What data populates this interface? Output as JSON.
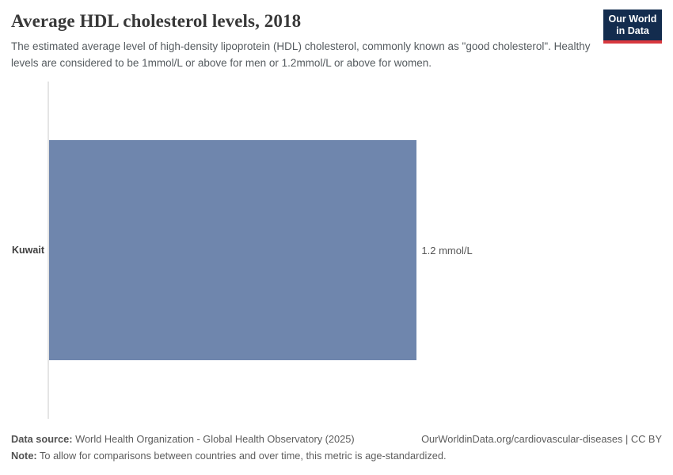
{
  "header": {
    "title": "Average HDL cholesterol levels, 2018",
    "subtitle": "The estimated average level of high-density lipoprotein (HDL) cholesterol, commonly known as \"good cholesterol\". Healthy levels are considered to be 1mmol/L or above for men or 1.2mmol/L or above for women.",
    "logo": {
      "line1": "Our World",
      "line2": "in Data"
    }
  },
  "chart_data": {
    "type": "bar",
    "orientation": "horizontal",
    "title": "Average HDL cholesterol levels, 2018",
    "categories": [
      "Kuwait"
    ],
    "values": [
      1.2
    ],
    "unit": "mmol/L",
    "value_labels": [
      "1.2 mmol/L"
    ],
    "xlabel": "",
    "ylabel": "",
    "xlim": [
      0,
      2
    ],
    "grid": false,
    "legend": false
  },
  "colors": {
    "bar": "#6f86ad",
    "axis_line": "#e4e4e4",
    "logo_bg": "#132c4e",
    "logo_accent": "#d8383e"
  },
  "footer": {
    "data_source_label": "Data source:",
    "data_source_text": "World Health Organization - Global Health Observatory (2025)",
    "citation": "OurWorldinData.org/cardiovascular-diseases | CC BY",
    "note_label": "Note:",
    "note_text": "To allow for comparisons between countries and over time, this metric is age-standardized."
  }
}
